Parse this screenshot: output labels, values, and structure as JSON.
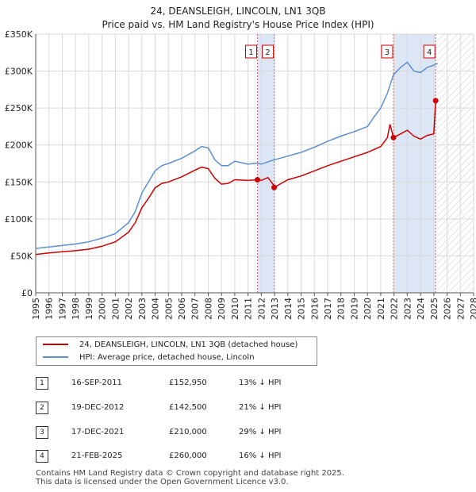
{
  "title_line1": "24, DEANSLEIGH, LINCOLN, LN1 3QB",
  "title_line2": "Price paid vs. HM Land Registry's House Price Index (HPI)",
  "legend": {
    "property": "24, DEANSLEIGH, LINCOLN, LN1 3QB (detached house)",
    "hpi": "HPI: Average price, detached house, Lincoln"
  },
  "transactions": [
    {
      "num": "1",
      "date": "16-SEP-2011",
      "price": "£152,950",
      "hpi": "13% ↓ HPI"
    },
    {
      "num": "2",
      "date": "19-DEC-2012",
      "price": "£142,500",
      "hpi": "21% ↓ HPI"
    },
    {
      "num": "3",
      "date": "17-DEC-2021",
      "price": "£210,000",
      "hpi": "29% ↓ HPI"
    },
    {
      "num": "4",
      "date": "21-FEB-2025",
      "price": "£260,000",
      "hpi": "16% ↓ HPI"
    }
  ],
  "footer_line1": "Contains HM Land Registry data © Crown copyright and database right 2025.",
  "footer_line2": "This data is licensed under the Open Government Licence v3.0.",
  "colors": {
    "property": "#cc0000",
    "hpi": "#5b8fd0",
    "shade": "#dde6f5",
    "grid": "#d9d9d9"
  },
  "chart_data": {
    "type": "line",
    "xlim": [
      1995,
      2028
    ],
    "ylim": [
      0,
      350000
    ],
    "yticks": [
      0,
      50000,
      100000,
      150000,
      200000,
      250000,
      300000,
      350000
    ],
    "ytick_labels": [
      "£0",
      "£50K",
      "£100K",
      "£150K",
      "£200K",
      "£250K",
      "£300K",
      "£350K"
    ],
    "xticks": [
      "1995",
      "1996",
      "1997",
      "1998",
      "1999",
      "2000",
      "2001",
      "2002",
      "2003",
      "2004",
      "2005",
      "2006",
      "2007",
      "2008",
      "2009",
      "2010",
      "2011",
      "2012",
      "2013",
      "2014",
      "2015",
      "2016",
      "2017",
      "2018",
      "2019",
      "2020",
      "2021",
      "2022",
      "2023",
      "2024",
      "2025",
      "2026",
      "2027",
      "2028"
    ],
    "shaded_ranges": [
      [
        2011.71,
        2012.97
      ],
      [
        2021.96,
        2025.14
      ]
    ],
    "hatched_from": 2025.3,
    "series": [
      {
        "name": "HPI: Average price, detached house, Lincoln",
        "color": "#5b8fd0",
        "points": [
          [
            1995,
            60000
          ],
          [
            1996,
            62000
          ],
          [
            1997,
            64000
          ],
          [
            1998,
            66000
          ],
          [
            1999,
            69000
          ],
          [
            2000,
            74000
          ],
          [
            2001,
            80000
          ],
          [
            2002,
            95000
          ],
          [
            2002.5,
            110000
          ],
          [
            2003,
            135000
          ],
          [
            2003.5,
            150000
          ],
          [
            2004,
            165000
          ],
          [
            2004.5,
            172000
          ],
          [
            2005,
            175000
          ],
          [
            2006,
            182000
          ],
          [
            2007,
            192000
          ],
          [
            2007.5,
            198000
          ],
          [
            2008,
            196000
          ],
          [
            2008.5,
            180000
          ],
          [
            2009,
            172000
          ],
          [
            2009.5,
            172000
          ],
          [
            2010,
            178000
          ],
          [
            2011,
            174000
          ],
          [
            2011.71,
            175500
          ],
          [
            2012,
            174000
          ],
          [
            2012.97,
            180000
          ],
          [
            2013,
            180000
          ],
          [
            2014,
            185000
          ],
          [
            2015,
            190000
          ],
          [
            2016,
            197000
          ],
          [
            2017,
            205000
          ],
          [
            2018,
            212000
          ],
          [
            2019,
            218000
          ],
          [
            2020,
            225000
          ],
          [
            2020.5,
            238000
          ],
          [
            2021,
            250000
          ],
          [
            2021.5,
            270000
          ],
          [
            2021.96,
            295000
          ],
          [
            2022.5,
            305000
          ],
          [
            2023,
            312000
          ],
          [
            2023.5,
            300000
          ],
          [
            2024,
            298000
          ],
          [
            2024.5,
            305000
          ],
          [
            2025,
            308000
          ],
          [
            2025.14,
            309500
          ],
          [
            2025.3,
            310000
          ]
        ]
      },
      {
        "name": "24, DEANSLEIGH, LINCOLN, LN1 3QB (detached house)",
        "color": "#cc0000",
        "points": [
          [
            1995,
            52000
          ],
          [
            1996,
            54000
          ],
          [
            1997,
            55500
          ],
          [
            1998,
            57000
          ],
          [
            1999,
            59000
          ],
          [
            2000,
            63000
          ],
          [
            2001,
            69000
          ],
          [
            2002,
            82000
          ],
          [
            2002.5,
            95000
          ],
          [
            2003,
            115000
          ],
          [
            2003.5,
            128000
          ],
          [
            2004,
            142000
          ],
          [
            2004.5,
            148000
          ],
          [
            2005,
            150000
          ],
          [
            2006,
            157000
          ],
          [
            2007,
            166000
          ],
          [
            2007.5,
            170000
          ],
          [
            2008,
            168000
          ],
          [
            2008.5,
            155000
          ],
          [
            2009,
            147000
          ],
          [
            2009.5,
            148000
          ],
          [
            2010,
            153000
          ],
          [
            2011,
            152000
          ],
          [
            2011.71,
            152950
          ],
          [
            2012,
            152000
          ],
          [
            2012.5,
            156000
          ],
          [
            2012.96,
            145000
          ],
          [
            2012.97,
            142500
          ],
          [
            2013.5,
            148000
          ],
          [
            2014,
            153000
          ],
          [
            2015,
            158000
          ],
          [
            2016,
            165000
          ],
          [
            2017,
            172000
          ],
          [
            2018,
            178000
          ],
          [
            2019,
            184000
          ],
          [
            2020,
            190000
          ],
          [
            2021,
            198000
          ],
          [
            2021.5,
            210000
          ],
          [
            2021.7,
            228000
          ],
          [
            2021.96,
            210000
          ],
          [
            2022.5,
            215000
          ],
          [
            2023,
            220000
          ],
          [
            2023.5,
            212000
          ],
          [
            2024,
            208000
          ],
          [
            2024.5,
            213000
          ],
          [
            2025,
            215000
          ],
          [
            2025.14,
            260000
          ]
        ]
      }
    ],
    "markers": [
      {
        "label": "1",
        "x": 2011.71,
        "y": 152950
      },
      {
        "label": "2",
        "x": 2012.97,
        "y": 142500
      },
      {
        "label": "3",
        "x": 2021.96,
        "y": 210000
      },
      {
        "label": "4",
        "x": 2025.14,
        "y": 260000
      }
    ]
  }
}
